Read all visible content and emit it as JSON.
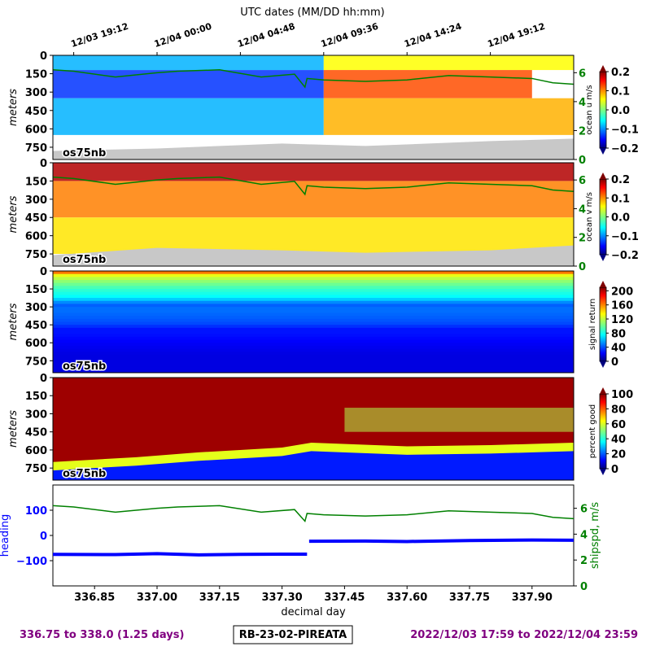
{
  "figure": {
    "top_axis_title": "UTC dates (MM/DD hh:mm)",
    "top_ticks": [
      "12/03 19:12",
      "12/04 00:00",
      "12/04 04:48",
      "12/04 09:36",
      "12/04 14:24",
      "12/04 19:12"
    ],
    "top_tick_days": [
      336.8,
      337.0,
      337.2,
      337.4,
      337.6,
      337.8
    ],
    "x_range": [
      336.75,
      338.0
    ],
    "footer_left": "336.75 to 338.0 (1.25 days)",
    "footer_center": "RB-23-02-PIREATA",
    "footer_right": "2022/12/03 17:59 to 2022/12/04 23:59",
    "instrument_label": "os75nb",
    "colors": {
      "footer_text": "#800080",
      "shipspd": "#008000",
      "heading": "#0000ff",
      "no_data": "#c8c8c8"
    }
  },
  "chart_data": [
    {
      "type": "heatmap",
      "variable": "ocean u",
      "ylabel": "meters",
      "yticks": [
        0,
        150,
        300,
        450,
        600,
        750
      ],
      "ylim": [
        850,
        0
      ],
      "colorbar_label": "ocean u m/s",
      "colorbar_ticks": [
        "0.2",
        "0.1",
        "0.0",
        "−0.1",
        "−0.2"
      ],
      "clim": [
        -0.2,
        0.2
      ],
      "colormap": "jet",
      "right_axis_ticks": [
        "6",
        "4",
        "2",
        "0"
      ],
      "right_axis_range": [
        0,
        7.2
      ],
      "overlay_series": "shipspd",
      "label": "os75nb",
      "bands": [
        {
          "depth_top": 0,
          "depth_bottom": 120,
          "x_start": 336.75,
          "x_end": 337.4,
          "value": -0.08
        },
        {
          "depth_top": 0,
          "depth_bottom": 120,
          "x_start": 337.4,
          "x_end": 338.0,
          "value": 0.05
        },
        {
          "depth_top": 120,
          "depth_bottom": 350,
          "x_start": 336.75,
          "x_end": 337.4,
          "value": -0.13
        },
        {
          "depth_top": 120,
          "depth_bottom": 350,
          "x_start": 337.4,
          "x_end": 337.9,
          "value": 0.12
        },
        {
          "depth_top": 350,
          "depth_bottom": 650,
          "x_start": 336.75,
          "x_end": 337.4,
          "value": -0.08
        },
        {
          "depth_top": 350,
          "depth_bottom": 650,
          "x_start": 337.4,
          "x_end": 338.0,
          "value": 0.08
        }
      ],
      "bottom_depth": {
        "x": [
          336.75,
          337.0,
          337.3,
          337.5,
          337.8,
          338.0
        ],
        "depth": [
          780,
          760,
          720,
          740,
          700,
          680
        ]
      }
    },
    {
      "type": "heatmap",
      "variable": "ocean v",
      "ylabel": "meters",
      "yticks": [
        0,
        150,
        300,
        450,
        600,
        750
      ],
      "ylim": [
        850,
        0
      ],
      "colorbar_label": "ocean v m/s",
      "colorbar_ticks": [
        "0.2",
        "0.1",
        "0.0",
        "−0.1",
        "−0.2"
      ],
      "clim": [
        -0.2,
        0.2
      ],
      "colormap": "jet",
      "right_axis_ticks": [
        "6",
        "4",
        "2",
        "0"
      ],
      "right_axis_range": [
        0,
        7.2
      ],
      "overlay_series": "shipspd",
      "label": "os75nb",
      "bands": [
        {
          "depth_top": 0,
          "depth_bottom": 150,
          "x_start": 336.75,
          "x_end": 338.0,
          "value": 0.18
        },
        {
          "depth_top": 150,
          "depth_bottom": 450,
          "x_start": 336.75,
          "x_end": 338.0,
          "value": 0.1
        },
        {
          "depth_top": 450,
          "depth_bottom": 750,
          "x_start": 336.75,
          "x_end": 338.0,
          "value": 0.06
        }
      ],
      "bottom_depth": {
        "x": [
          336.75,
          337.0,
          337.3,
          337.5,
          337.8,
          338.0
        ],
        "depth": [
          760,
          700,
          720,
          740,
          720,
          680
        ]
      }
    },
    {
      "type": "heatmap",
      "variable": "signal return",
      "ylabel": "meters",
      "yticks": [
        0,
        150,
        300,
        450,
        600,
        750
      ],
      "ylim": [
        850,
        0
      ],
      "colorbar_label": "signal return",
      "colorbar_ticks": [
        "200",
        "160",
        "120",
        "80",
        "40",
        "0"
      ],
      "clim": [
        0,
        210
      ],
      "colormap": "jet",
      "label": "os75nb",
      "profile": {
        "depth": [
          0,
          30,
          80,
          150,
          220,
          280,
          320,
          400,
          450,
          480,
          520,
          600,
          700,
          850
        ],
        "value": [
          180,
          130,
          110,
          90,
          78,
          45,
          50,
          45,
          40,
          30,
          30,
          25,
          20,
          20
        ]
      }
    },
    {
      "type": "heatmap",
      "variable": "percent good",
      "ylabel": "meters",
      "yticks": [
        0,
        150,
        300,
        450,
        600,
        750
      ],
      "ylim": [
        850,
        0
      ],
      "colorbar_label": "percent good",
      "colorbar_ticks": [
        "100",
        "80",
        "60",
        "40",
        "20",
        "0"
      ],
      "clim": [
        0,
        100
      ],
      "colormap": "jet",
      "label": "os75nb",
      "good_depth": {
        "x": [
          336.75,
          336.95,
          337.1,
          337.3,
          337.37,
          337.6,
          337.8,
          338.0
        ],
        "depth": [
          700,
          660,
          620,
          580,
          540,
          570,
          560,
          540
        ]
      },
      "patchy_region": {
        "x_start": 337.45,
        "x_end": 338.0,
        "depth_top": 250,
        "depth_bottom": 450,
        "value": 55
      }
    },
    {
      "type": "line",
      "xlabel": "decimal day",
      "xticks": [
        "336.85",
        "337.00",
        "337.15",
        "337.30",
        "337.45",
        "337.60",
        "337.75",
        "337.90"
      ],
      "ylim_left": [
        -200,
        200
      ],
      "ylim_right": [
        0,
        7.8
      ],
      "left_ticks": [
        "100",
        "0",
        "−100"
      ],
      "right_ticks": [
        "6",
        "4",
        "2",
        "0"
      ],
      "left_label": "heading",
      "right_label": "shipspd, m/s",
      "series": [
        {
          "name": "heading",
          "axis": "left",
          "x": [
            336.75,
            336.9,
            337.0,
            337.1,
            337.2,
            337.3,
            337.36,
            337.365,
            337.5,
            337.6,
            337.75,
            337.9,
            338.0
          ],
          "values": [
            -75,
            -76,
            -72,
            -77,
            -75,
            -74,
            -74,
            -23,
            -22,
            -24,
            -20,
            -18,
            -19
          ]
        },
        {
          "name": "shipspd",
          "axis": "right",
          "x": [
            336.75,
            336.8,
            336.9,
            337.0,
            337.05,
            337.15,
            337.25,
            337.33,
            337.355,
            337.36,
            337.4,
            337.5,
            337.6,
            337.7,
            337.8,
            337.9,
            337.95,
            338.0
          ],
          "values": [
            6.2,
            6.1,
            5.7,
            6.0,
            6.1,
            6.2,
            5.7,
            5.9,
            5.0,
            5.6,
            5.5,
            5.4,
            5.5,
            5.8,
            5.7,
            5.6,
            5.3,
            5.2
          ]
        }
      ]
    }
  ]
}
